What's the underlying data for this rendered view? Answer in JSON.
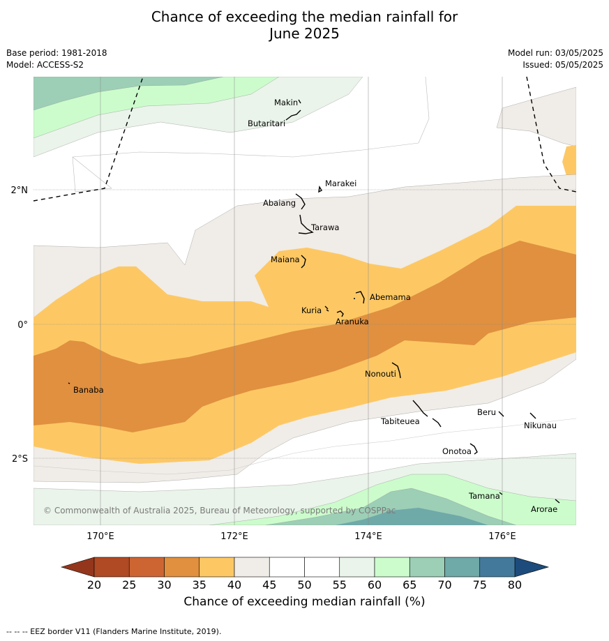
{
  "title_line1": "Chance of exceeding the median rainfall for",
  "title_line2": "June 2025",
  "base_period": "Base period: 1981-2018",
  "model": "Model: ACCESS-S2",
  "model_run": "Model run: 03/05/2025",
  "issued": "Issued: 05/05/2025",
  "copyright": "© Commonwealth of Australia 2025, Bureau of Meteorology, supported by COSPPac",
  "footer": "-- -- -- EEZ border V11 (Flanders Marine Institute, 2019).",
  "lat_labels": [
    "2°N",
    "0°",
    "2°S"
  ],
  "lon_labels": [
    "170°E",
    "172°E",
    "174°E",
    "176°E"
  ],
  "colorbar": {
    "label": "Chance of exceeding median rainfall (%)",
    "ticks": [
      "20",
      "25",
      "30",
      "35",
      "40",
      "45",
      "50",
      "55",
      "60",
      "65",
      "70",
      "75",
      "80"
    ],
    "colors": [
      "#b04a24",
      "#cd6533",
      "#e0903f",
      "#fdc864",
      "#f0ece7",
      "#ffffff",
      "#ffffff",
      "#eaf4ea",
      "#ccfccc",
      "#9ccfb6",
      "#6fa9a8",
      "#437a9c"
    ],
    "under_color": "#94361c",
    "over_color": "#1d4c7c"
  },
  "places": [
    "Makin",
    "Butaritari",
    "Marakei",
    "Abaiang",
    "Tarawa",
    "Maiana",
    "Abemama",
    "Kuria",
    "Aranuka",
    "Banaba",
    "Nonouti",
    "Tabiteuea",
    "Beru",
    "Nikunau",
    "Onotoa",
    "Tamana",
    "Arorae"
  ]
}
